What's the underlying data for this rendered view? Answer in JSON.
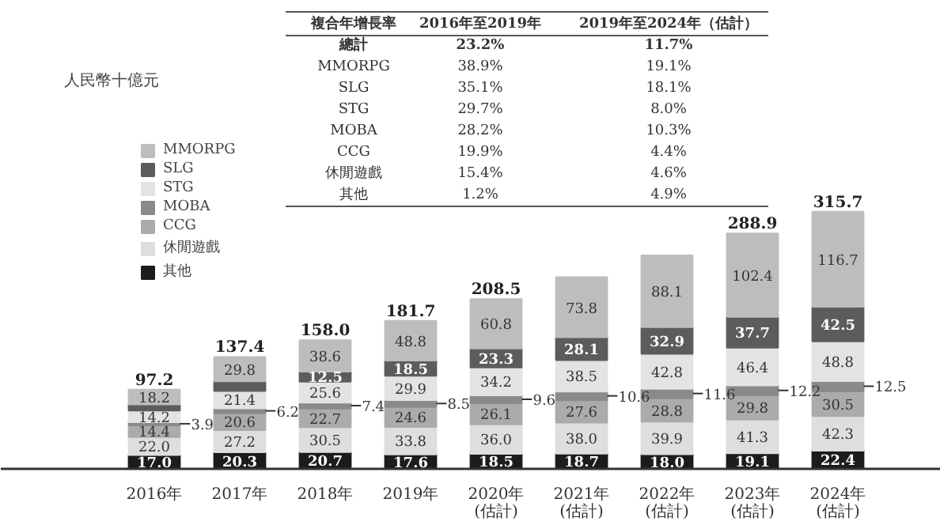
{
  "chart_data": {
    "type": "bar",
    "stacked": true,
    "legend": "top left",
    "grid": false,
    "categories": [
      "2016年",
      "2017年",
      "2018年",
      "2019年",
      "2020年\n(估計)",
      "2021年\n(估計)",
      "2022年\n(估計)",
      "2023年\n(估計)",
      "2024年\n(估計)"
    ],
    "series": [
      {
        "name": "其他",
        "color": "#1c1c1c",
        "values": [
          17.0,
          20.3,
          20.7,
          17.6,
          18.5,
          18.7,
          18.0,
          19.1,
          22.4
        ],
        "value_labels": [
          "17.0",
          "20.3",
          "20.7",
          "17.6",
          "18.5",
          "18.7",
          "18.0",
          "19.1",
          "22.4"
        ]
      },
      {
        "name": "休閒遊戲",
        "color": "#dedede",
        "values": [
          22.0,
          27.2,
          30.5,
          33.8,
          36.0,
          38.0,
          39.9,
          41.3,
          42.3
        ],
        "value_labels": [
          "22.0",
          "27.2",
          "30.5",
          "33.8",
          "36.0",
          "38.0",
          "39.9",
          "41.3",
          "42.3"
        ]
      },
      {
        "name": "CCG",
        "color": "#ababab",
        "values": [
          14.4,
          20.6,
          22.7,
          24.6,
          26.1,
          27.6,
          28.8,
          29.8,
          30.5
        ],
        "value_labels": [
          "14.4",
          "20.6",
          "22.7",
          "24.6",
          "26.1",
          "27.6",
          "28.8",
          "29.8",
          "30.5"
        ]
      },
      {
        "name": "MOBA",
        "color": "#8a8a8a",
        "values": [
          3.9,
          6.2,
          7.4,
          8.5,
          9.6,
          10.6,
          11.6,
          12.2,
          12.5
        ],
        "value_labels": [
          "3.9",
          "6.2",
          "7.4",
          "8.5",
          "9.6",
          "10.6",
          "11.6",
          "12.2",
          "12.5"
        ]
      },
      {
        "name": "STG",
        "color": "#e3e3e3",
        "values": [
          14.2,
          21.4,
          25.6,
          29.9,
          34.2,
          38.5,
          42.8,
          46.4,
          48.8
        ],
        "value_labels": [
          "14.2",
          "21.4",
          "25.6",
          "29.9",
          "34.2",
          "38.5",
          "42.8",
          "46.4",
          "48.8"
        ]
      },
      {
        "name": "SLG",
        "color": "#5c5c5c",
        "values": [
          7.5,
          11.9,
          12.5,
          18.5,
          23.3,
          28.1,
          32.9,
          37.7,
          42.5
        ],
        "value_labels": [
          null,
          null,
          "12.5",
          "18.5",
          "23.3",
          "28.1",
          "32.9",
          "37.7",
          "42.5"
        ]
      },
      {
        "name": "MMORPG",
        "color": "#bdbdbd",
        "values": [
          18.2,
          29.8,
          38.6,
          48.8,
          60.8,
          73.8,
          88.1,
          102.4,
          116.7
        ],
        "value_labels": [
          "18.2",
          "29.8",
          "38.6",
          "48.8",
          "60.8",
          "73.8",
          "88.1",
          "102.4",
          "116.7"
        ]
      }
    ],
    "totals": [
      "97.2",
      "137.4",
      "158.0",
      "181.7",
      "208.5",
      null,
      null,
      "288.9",
      "315.7"
    ],
    "annotations": [
      "人民幣十億元",
      "複合年增長率\t2016年至2019年\t2019年至2024年（估計）",
      "總計\t23.2%\t11.7%",
      "MMORPG\t38.9%\t19.1%",
      "SLG\t35.1%\t18.1%",
      "STG\t29.7%\t8.0%",
      "MOBA\t28.2%\t10.3%",
      "CCG\t19.9%\t4.4%",
      "休閒遊戲\t15.4%\t4.6%",
      "其他\t1.2%\t4.9%"
    ]
  }
}
